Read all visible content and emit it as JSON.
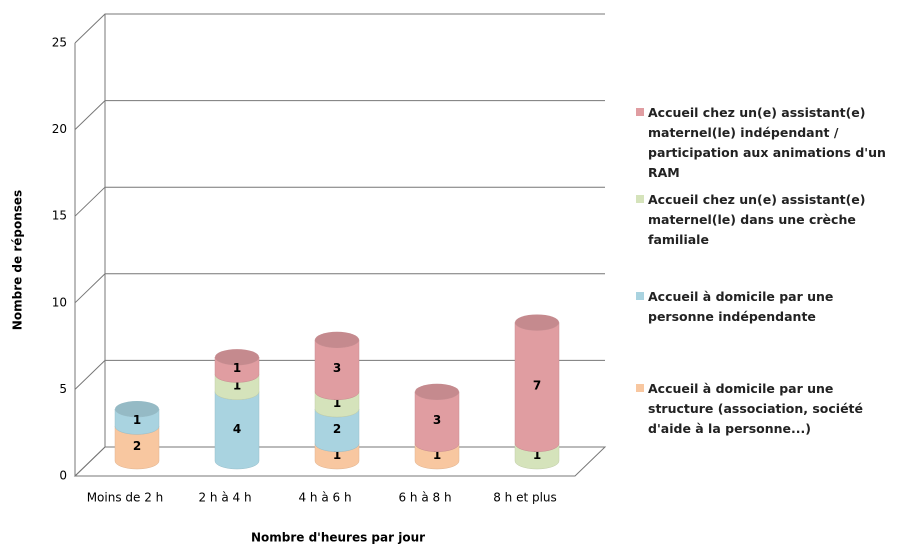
{
  "chart_data": {
    "type": "bar3d_stacked",
    "y_axis_label": "Nombre de réponses",
    "x_axis_label": "Nombre d'heures par jour",
    "categories": [
      "Moins de 2 h",
      "2 h à 4 h",
      "4 h à 6 h",
      "6 h à 8 h",
      "8 h et plus"
    ],
    "series": [
      {
        "name": "Accueil à domicile par une structure (association, société d'aide à la personne...)",
        "color": "#f8c7a0",
        "values": [
          2,
          0,
          1,
          1,
          0
        ]
      },
      {
        "name": "Accueil à domicile par une personne indépendante",
        "color": "#a9d3e0",
        "values": [
          1,
          4,
          2,
          0,
          0
        ]
      },
      {
        "name": "Accueil chez un(e) assistant(e) maternel(le) dans une crèche familiale",
        "color": "#d5e3bb",
        "values": [
          0,
          1,
          1,
          0,
          1
        ]
      },
      {
        "name": "Accueil chez un(e) assistant(e) maternel(le) indépendant / participation aux animations d'un RAM",
        "color": "#e09da1",
        "values": [
          0,
          1,
          3,
          3,
          7
        ]
      }
    ],
    "ylim": [
      0,
      25
    ],
    "yticks": [
      0,
      5,
      10,
      15,
      20,
      25
    ],
    "grid": true,
    "legend": "right"
  }
}
